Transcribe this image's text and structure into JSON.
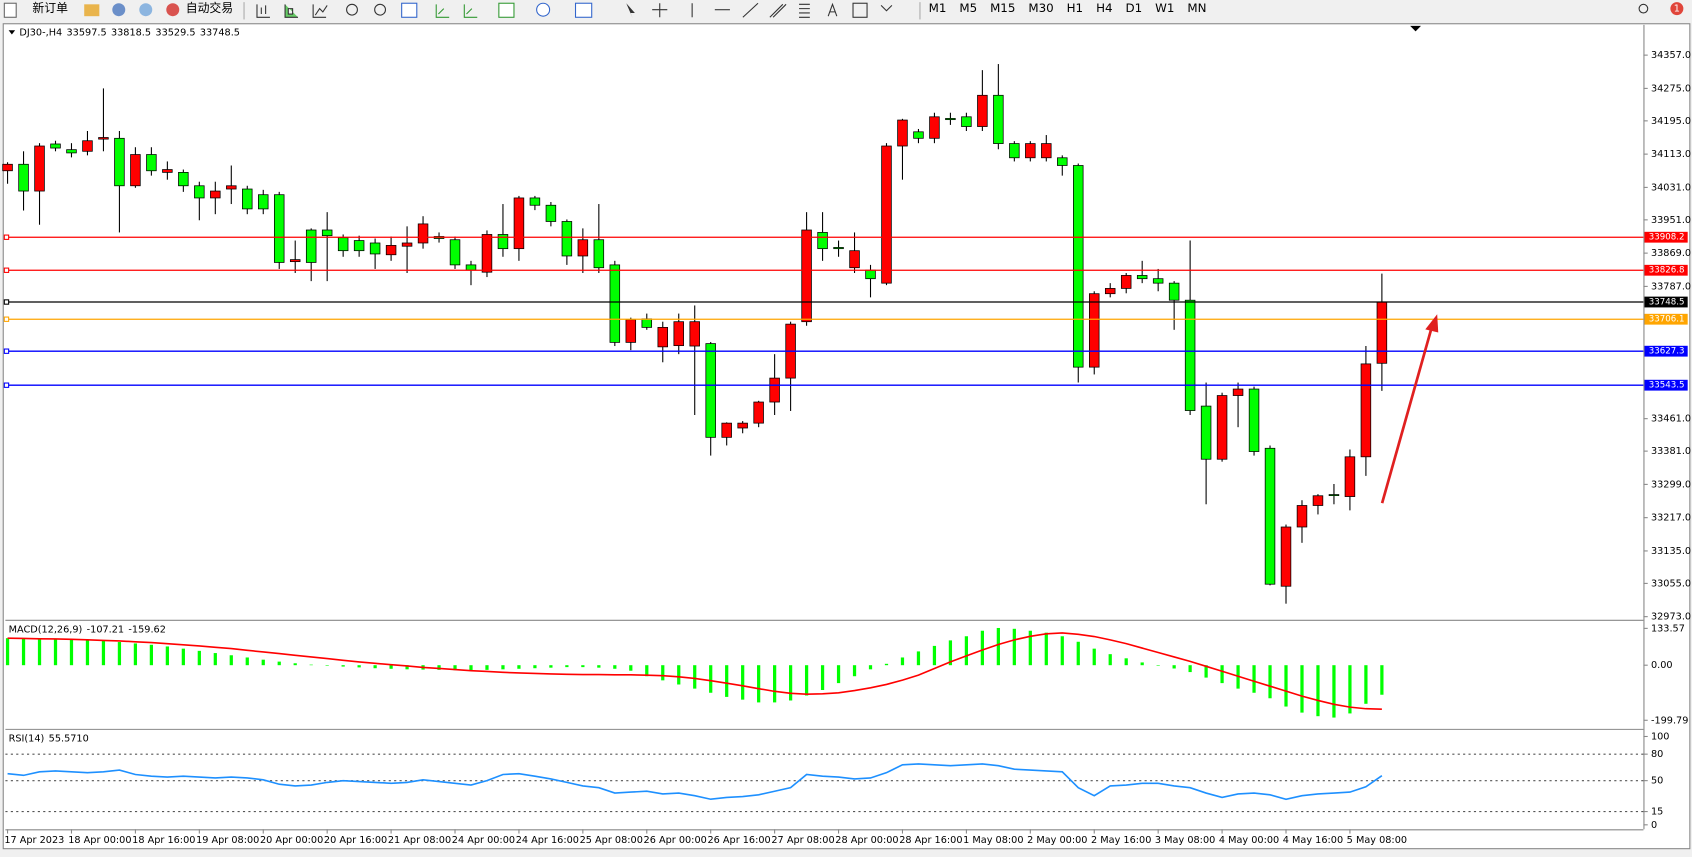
{
  "toolbar": {
    "new_order": "新订单",
    "auto_trading": "自动交易",
    "timeframes": [
      "M1",
      "M5",
      "M15",
      "M30",
      "H1",
      "H4",
      "D1",
      "W1",
      "MN"
    ],
    "notifications": 1
  },
  "chart_data": [
    {
      "type": "candlestick",
      "symbol": "DJ30-,H4",
      "categories": [
        "17 Apr 2023",
        null,
        null,
        null,
        "18 Apr 00:00",
        null,
        null,
        null,
        "18 Apr 16:00",
        null,
        null,
        null,
        "19 Apr 08:00",
        null,
        null,
        null,
        "20 Apr 00:00",
        null,
        null,
        null,
        "20 Apr 16:00",
        null,
        null,
        null,
        "21 Apr 08:00",
        null,
        null,
        null,
        "24 Apr 00:00",
        null,
        null,
        null,
        "24 Apr 16:00",
        null,
        null,
        null,
        "25 Apr 08:00",
        null,
        null,
        null,
        "26 Apr 00:00",
        null,
        null,
        null,
        "26 Apr 16:00",
        null,
        null,
        null,
        "27 Apr 08:00",
        null,
        null,
        null,
        "28 Apr 00:00",
        null,
        null,
        null,
        "28 Apr 16:00",
        null,
        null,
        null,
        "1 May 08:00",
        null,
        null,
        null,
        "2 May 00:00",
        null,
        null,
        null,
        "2 May 16:00",
        null,
        null,
        null,
        "3 May 08:00",
        null,
        null,
        null,
        "4 May 00:00",
        null,
        null,
        null,
        "4 May 16:00",
        null,
        null,
        null,
        "5 May 08:00",
        null,
        null
      ],
      "open": [
        34072,
        34088,
        34022,
        34138,
        34124,
        34120,
        34150,
        34152,
        34035,
        34112,
        34068,
        34068,
        34035,
        34005,
        34027,
        34027,
        34013,
        34013,
        33848,
        33926,
        33926,
        33907,
        33900,
        33894,
        33865,
        33886,
        33894,
        33910,
        33902,
        33840,
        33822,
        33915,
        33880,
        34005,
        33987,
        33947,
        33862,
        33902,
        33840,
        33649,
        33707,
        33638,
        33641,
        33640,
        33646,
        33415,
        33438,
        33450,
        33502,
        33561,
        33700,
        33920,
        33883,
        33833,
        33827,
        33795,
        34133,
        34168,
        34152,
        34201,
        34205,
        34181,
        34258,
        34139,
        34104,
        34104,
        34104,
        34085,
        33588,
        33769,
        33782,
        33814,
        33806,
        33795,
        33753,
        33492,
        33361,
        33518,
        33534,
        33388,
        33048,
        33194,
        33247,
        33274,
        33269,
        33367,
        33597.5
      ],
      "high": [
        34093,
        34120,
        34140,
        34146,
        34140,
        34170,
        34275,
        34170,
        34130,
        34130,
        34095,
        34075,
        34045,
        34045,
        34085,
        34035,
        34025,
        34020,
        33900,
        33930,
        33970,
        33915,
        33912,
        33905,
        33910,
        33935,
        33960,
        33920,
        33910,
        33850,
        33925,
        33990,
        34010,
        34010,
        33995,
        33952,
        33930,
        33990,
        33850,
        33710,
        33720,
        33700,
        33720,
        33740,
        33650,
        33452,
        33455,
        33505,
        33620,
        33700,
        33970,
        33970,
        33900,
        33920,
        33840,
        34140,
        34200,
        34175,
        34215,
        34215,
        34215,
        34320,
        34335,
        34145,
        34145,
        34160,
        34110,
        34090,
        33775,
        33795,
        33820,
        33850,
        33830,
        33800,
        33900,
        33550,
        33525,
        33550,
        33540,
        33395,
        33200,
        33260,
        33275,
        33300,
        33385,
        33640,
        33818.5
      ],
      "low": [
        34040,
        33974,
        33939,
        34120,
        34105,
        34110,
        34120,
        33920,
        34030,
        34060,
        34050,
        34020,
        33950,
        33965,
        33990,
        33965,
        33965,
        33830,
        33820,
        33800,
        33800,
        33860,
        33860,
        33830,
        33850,
        33820,
        33880,
        33895,
        33830,
        33790,
        33810,
        33860,
        33850,
        33975,
        33935,
        33840,
        33820,
        33820,
        33640,
        33630,
        33680,
        33600,
        33620,
        33470,
        33370,
        33395,
        33425,
        33440,
        33470,
        33480,
        33690,
        33850,
        33860,
        33820,
        33760,
        33790,
        34050,
        34140,
        34140,
        34185,
        34170,
        34170,
        34125,
        34095,
        34095,
        34095,
        34060,
        33550,
        33570,
        33760,
        33770,
        33795,
        33775,
        33680,
        33470,
        33250,
        33355,
        33440,
        33370,
        33050,
        33005,
        33155,
        33225,
        33250,
        33235,
        33320,
        33529.5
      ],
      "close": [
        34088,
        34022,
        34133,
        34128,
        34116,
        34146,
        34154,
        34035,
        34112,
        34072,
        34075,
        34035,
        34005,
        34022,
        34035,
        33978,
        33978,
        33846,
        33853,
        33846,
        33912,
        33875,
        33875,
        33867,
        33888,
        33894,
        33941,
        33905,
        33840,
        33827,
        33915,
        33880,
        34005,
        33987,
        33947,
        33862,
        33902,
        33833,
        33649,
        33705,
        33686,
        33686,
        33700,
        33700,
        33415,
        33450,
        33450,
        33502,
        33561,
        33694,
        33926,
        33880,
        33880,
        33875,
        33806,
        34133,
        34197,
        34152,
        34205,
        34198,
        34181,
        34258,
        34139,
        34104,
        34139,
        34139,
        34085,
        33588,
        33769,
        33782,
        33814,
        33806,
        33795,
        33753,
        33481,
        33361,
        33518,
        33534,
        33380,
        33053,
        33194,
        33247,
        33271,
        33272,
        33367,
        33596,
        33748.5
      ],
      "up_color": "#ff0000",
      "down_color": "#00ff00",
      "ylim": [
        32968,
        34429
      ],
      "yticks": [
        {
          "value": 34357,
          "label": "34357.0"
        },
        {
          "value": 34275,
          "label": "34275.0"
        },
        {
          "value": 34195,
          "label": "34195.0"
        },
        {
          "value": 34113,
          "label": "34113.0"
        },
        {
          "value": 34031,
          "label": "34031.0"
        },
        {
          "value": 33951,
          "label": "33951.0"
        },
        {
          "value": 33869,
          "label": "33869.0"
        },
        {
          "value": 33787,
          "label": "33787.0"
        },
        {
          "value": 33461,
          "label": "33461.0"
        },
        {
          "value": 33381,
          "label": "33381.0"
        },
        {
          "value": 33299,
          "label": "33299.0"
        },
        {
          "value": 33217,
          "label": "33217.0"
        },
        {
          "value": 33135,
          "label": "33135.0"
        },
        {
          "value": 33055,
          "label": "33055.0"
        },
        {
          "value": 32973,
          "label": "32973.0"
        }
      ],
      "levels": [
        {
          "value": 33908.2,
          "color": "#ff0000"
        },
        {
          "value": 33826.8,
          "color": "#ff0000"
        },
        {
          "value": 33748.5,
          "color": "#000000"
        },
        {
          "value": 33706.1,
          "color": "#ffa500"
        },
        {
          "value": 33627.3,
          "color": "#0000ff"
        },
        {
          "value": 33543.5,
          "color": "#0000ff"
        }
      ]
    },
    {
      "type": "macd",
      "name": "MACD(12,26,9)",
      "values": [
        98,
        97,
        96,
        95,
        93,
        91,
        88,
        84,
        79,
        74,
        68,
        60,
        52,
        44,
        36,
        28,
        20,
        13,
        7,
        2,
        -2,
        -5,
        -8,
        -11,
        -13,
        -15,
        -16,
        -17,
        -18,
        -18,
        -17,
        -15,
        -13,
        -11,
        -9,
        -7,
        -7,
        -9,
        -13,
        -20,
        -40,
        -55,
        -70,
        -85,
        -100,
        -115,
        -125,
        -135,
        -135,
        -128,
        -110,
        -90,
        -65,
        -40,
        -15,
        5,
        28,
        50,
        70,
        90,
        105,
        125,
        135,
        132,
        125,
        118,
        105,
        85,
        60,
        40,
        25,
        10,
        -2,
        -12,
        -25,
        -45,
        -65,
        -85,
        -100,
        -120,
        -150,
        -172,
        -185,
        -190,
        -175,
        -140,
        -107.21
      ],
      "signal": [
        98,
        97,
        96,
        95,
        94,
        92,
        90,
        88,
        85,
        82,
        78,
        74,
        70,
        65,
        60,
        54,
        48,
        42,
        36,
        30,
        24,
        18,
        12,
        7,
        2,
        -3,
        -8,
        -12,
        -16,
        -20,
        -23,
        -26,
        -28,
        -30,
        -32,
        -33,
        -34,
        -34,
        -35,
        -35,
        -36,
        -38,
        -42,
        -48,
        -56,
        -65,
        -75,
        -85,
        -95,
        -102,
        -105,
        -104,
        -100,
        -92,
        -82,
        -70,
        -54,
        -36,
        -12,
        12,
        34,
        55,
        75,
        92,
        105,
        114,
        117,
        112,
        104,
        92,
        78,
        62,
        46,
        30,
        14,
        -4,
        -22,
        -40,
        -58,
        -76,
        -94,
        -112,
        -128,
        -142,
        -152,
        -158,
        -159.62
      ],
      "color": "#00ff00",
      "signal_color": "#ff0000",
      "ylim": [
        -223,
        153
      ],
      "yticks": [
        133.57,
        {
          "value": 0,
          "label": "0.00"
        },
        -199.79
      ]
    },
    {
      "type": "line",
      "name": "RSI(14)",
      "current_label": "55.5710",
      "values": [
        58,
        56,
        60,
        61,
        60,
        59,
        60,
        62,
        57,
        55,
        54,
        55,
        54,
        53,
        54,
        53,
        51,
        46,
        44,
        45,
        48,
        50,
        49,
        48,
        47,
        48,
        51,
        49,
        47,
        45,
        50,
        57,
        58,
        55,
        52,
        48,
        44,
        42,
        36,
        37,
        38,
        35,
        36,
        33,
        29,
        31,
        32,
        34,
        38,
        42,
        57,
        55,
        54,
        52,
        53,
        59,
        68,
        69,
        68,
        67,
        68,
        69,
        67,
        63,
        62,
        61,
        60,
        42,
        33,
        44,
        45,
        47,
        47,
        44,
        42,
        36,
        31,
        35,
        36,
        34,
        29,
        33,
        35,
        36,
        37,
        43,
        55.571
      ],
      "color": "#1e90ff",
      "ylim": [
        -5,
        105
      ],
      "yticks": [
        100,
        80,
        50,
        15,
        0
      ],
      "levels": [
        80,
        50,
        15
      ]
    }
  ]
}
